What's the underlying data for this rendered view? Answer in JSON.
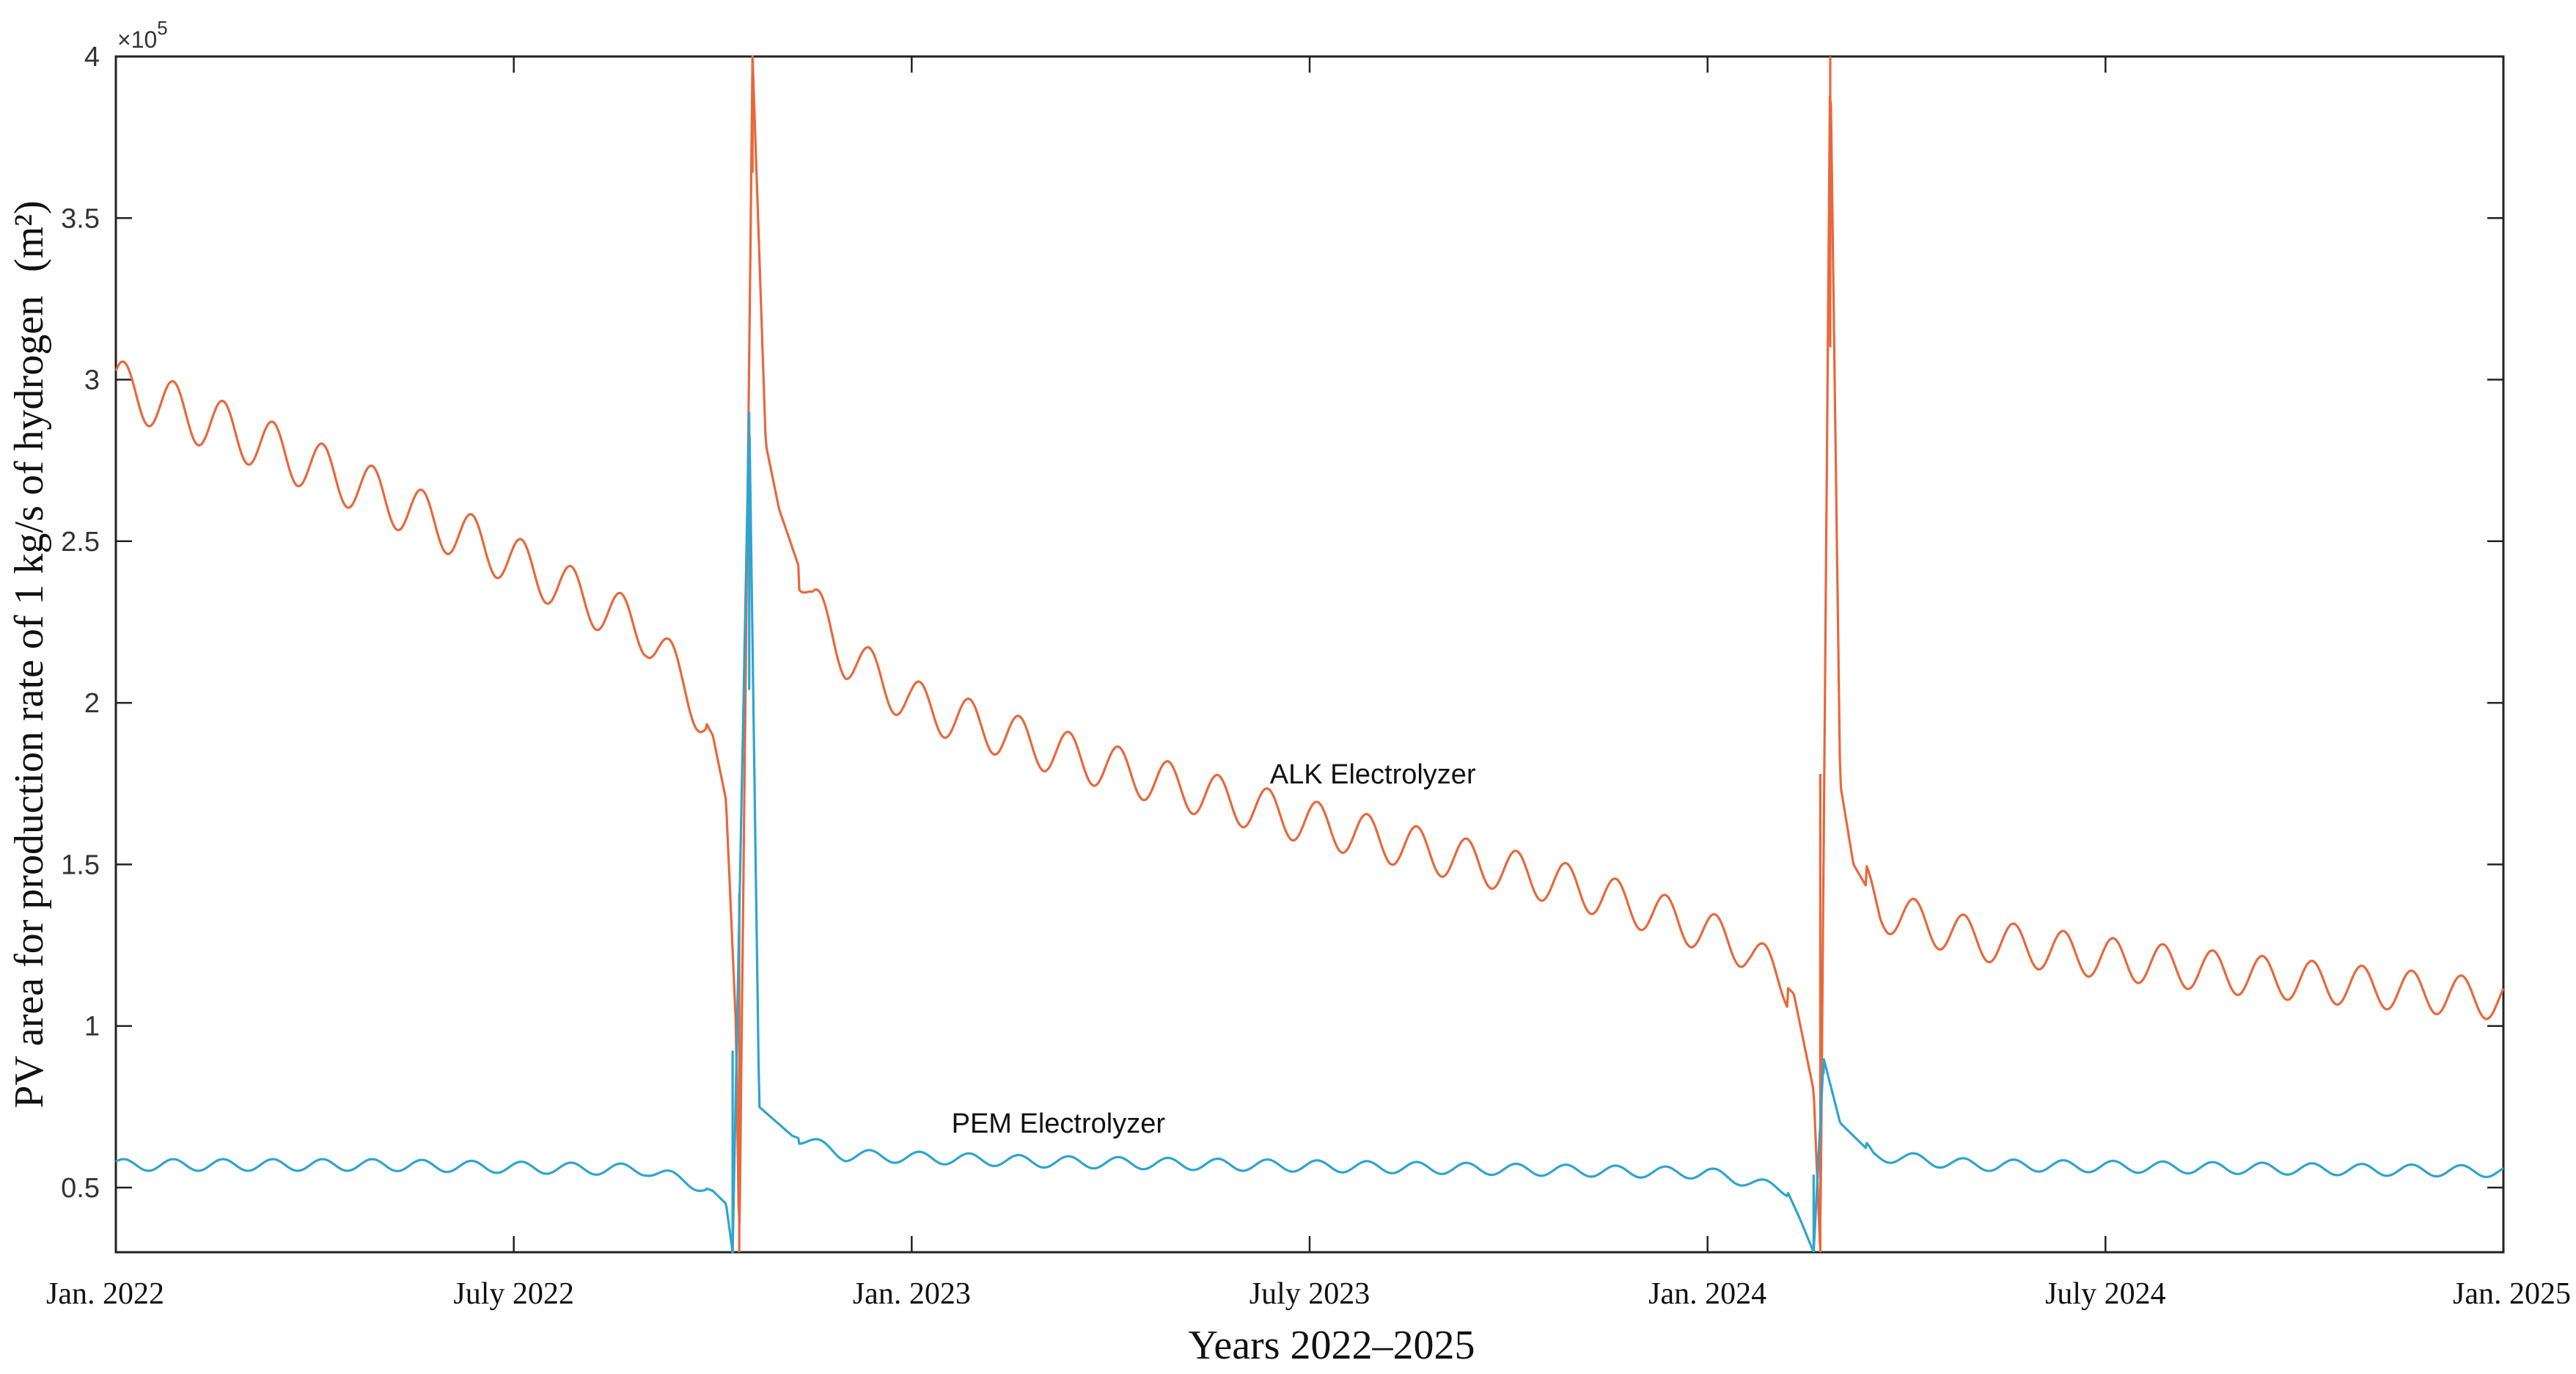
{
  "chart_data": {
    "type": "line",
    "title": "",
    "xlabel": "Years 2022–2025",
    "ylabel": "PV area for production rate of 1 kg/s of hydrogen",
    "ylabel_unit": "(m²)",
    "y_exponent_label": "×10",
    "y_exponent_power": "5",
    "xlim": [
      0,
      36
    ],
    "ylim": [
      0.3,
      4.0
    ],
    "x_ticks": [
      {
        "value": 0,
        "label": "Jan. 2022"
      },
      {
        "value": 6,
        "label": "July 2022"
      },
      {
        "value": 12,
        "label": "Jan. 2023"
      },
      {
        "value": 18,
        "label": "July 2023"
      },
      {
        "value": 24,
        "label": "Jan. 2024"
      },
      {
        "value": 30,
        "label": "July 2024"
      },
      {
        "value": 36,
        "label": "Jan. 2025"
      }
    ],
    "y_ticks": [
      {
        "value": 0.5,
        "label": "0.5"
      },
      {
        "value": 1.0,
        "label": "1"
      },
      {
        "value": 1.5,
        "label": "1.5"
      },
      {
        "value": 2.0,
        "label": "2"
      },
      {
        "value": 2.5,
        "label": "2.5"
      },
      {
        "value": 3.0,
        "label": "3"
      },
      {
        "value": 3.5,
        "label": "3.5"
      },
      {
        "value": 4.0,
        "label": "4"
      }
    ],
    "x_units": "months since Jan. 2022",
    "y_units": "×10^5 m²",
    "oscillation_period_months": 0.75,
    "series": [
      {
        "name": "ALK Electrolyzer",
        "color": "#e8683c",
        "oscillation_amplitude": 0.085,
        "anchors": [
          [
            0,
            2.98
          ],
          [
            2,
            2.82
          ],
          [
            4,
            2.64
          ],
          [
            6,
            2.44
          ],
          [
            8,
            2.22
          ],
          [
            8.6,
            2.05
          ],
          [
            9.0,
            1.9
          ],
          [
            9.2,
            1.7
          ],
          [
            9.35,
            1.0
          ],
          [
            9.4,
            0.3
          ],
          [
            9.6,
            4.0
          ],
          [
            9.8,
            2.8
          ],
          [
            10.0,
            2.6
          ],
          [
            10.5,
            2.3
          ],
          [
            11,
            2.15
          ],
          [
            12,
            2.0
          ],
          [
            14,
            1.86
          ],
          [
            16,
            1.74
          ],
          [
            18,
            1.63
          ],
          [
            20,
            1.53
          ],
          [
            22,
            1.43
          ],
          [
            23.5,
            1.33
          ],
          [
            24.6,
            1.24
          ],
          [
            25.3,
            1.1
          ],
          [
            25.6,
            0.8
          ],
          [
            25.7,
            0.3
          ],
          [
            25.85,
            4.0
          ],
          [
            26.0,
            1.75
          ],
          [
            26.2,
            1.5
          ],
          [
            26.6,
            1.36
          ],
          [
            28,
            1.27
          ],
          [
            30,
            1.21
          ],
          [
            32,
            1.16
          ],
          [
            34,
            1.12
          ],
          [
            36,
            1.08
          ]
        ],
        "label_position_value": {
          "x": 17.4,
          "y": 1.75
        }
      },
      {
        "name": "PEM Electrolyzer",
        "color": "#2fa4d0",
        "oscillation_amplitude": 0.018,
        "anchors": [
          [
            0,
            0.57
          ],
          [
            4,
            0.57
          ],
          [
            8,
            0.555
          ],
          [
            8.6,
            0.52
          ],
          [
            9.0,
            0.49
          ],
          [
            9.2,
            0.45
          ],
          [
            9.3,
            0.3
          ],
          [
            9.55,
            2.9
          ],
          [
            9.7,
            0.75
          ],
          [
            10.2,
            0.66
          ],
          [
            11,
            0.6
          ],
          [
            14,
            0.58
          ],
          [
            20,
            0.56
          ],
          [
            24,
            0.545
          ],
          [
            24.6,
            0.52
          ],
          [
            25.2,
            0.49
          ],
          [
            25.4,
            0.4
          ],
          [
            25.6,
            0.3
          ],
          [
            25.75,
            0.9
          ],
          [
            26.0,
            0.7
          ],
          [
            26.5,
            0.6
          ],
          [
            28,
            0.57
          ],
          [
            36,
            0.55
          ]
        ],
        "label_position_value": {
          "x": 12.6,
          "y": 0.67
        }
      }
    ]
  }
}
